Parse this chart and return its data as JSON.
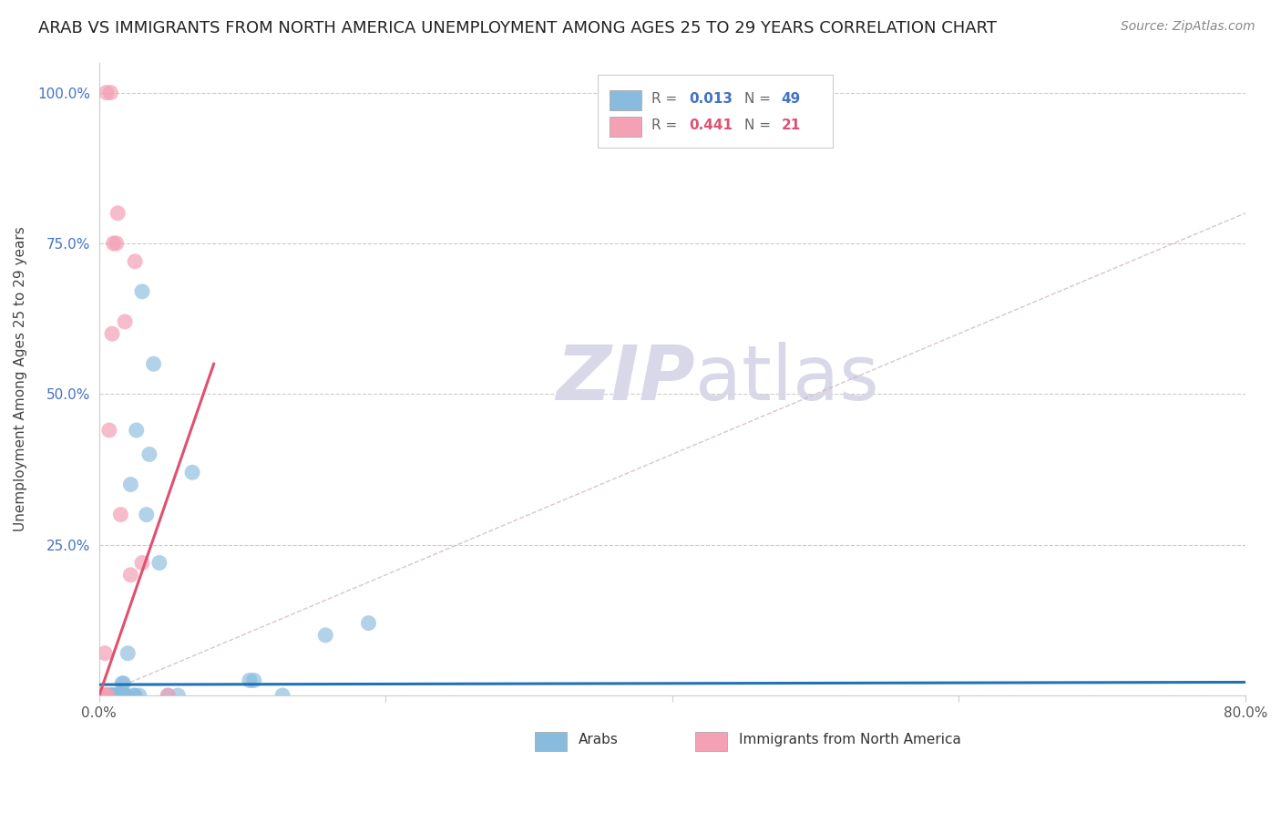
{
  "title": "ARAB VS IMMIGRANTS FROM NORTH AMERICA UNEMPLOYMENT AMONG AGES 25 TO 29 YEARS CORRELATION CHART",
  "source": "Source: ZipAtlas.com",
  "ylabel": "Unemployment Among Ages 25 to 29 years",
  "xlim": [
    0.0,
    0.8
  ],
  "ylim": [
    0.0,
    1.05
  ],
  "xticks": [
    0.0,
    0.2,
    0.4,
    0.6,
    0.8
  ],
  "xticklabels": [
    "0.0%",
    "",
    "",
    "",
    "80.0%"
  ],
  "yticks": [
    0.0,
    0.25,
    0.5,
    0.75,
    1.0
  ],
  "yticklabels": [
    "",
    "25.0%",
    "50.0%",
    "75.0%",
    "100.0%"
  ],
  "arab_color": "#88bbdd",
  "immigrant_color": "#f4a0b5",
  "arab_line_color": "#2171b5",
  "immigrant_line_color": "#e05070",
  "diag_line_color": "#ccaabb",
  "watermark_color": "#d8d8e8",
  "arab_line_x": [
    0.0,
    0.8
  ],
  "arab_line_y": [
    0.018,
    0.022
  ],
  "immigrant_line_x": [
    0.0,
    0.08
  ],
  "immigrant_line_y": [
    0.0,
    0.55
  ],
  "arab_x": [
    0.0,
    0.002,
    0.003,
    0.003,
    0.004,
    0.005,
    0.005,
    0.006,
    0.007,
    0.008,
    0.008,
    0.008,
    0.009,
    0.009,
    0.01,
    0.01,
    0.011,
    0.011,
    0.012,
    0.012,
    0.013,
    0.014,
    0.014,
    0.015,
    0.015,
    0.016,
    0.016,
    0.017,
    0.018,
    0.019,
    0.02,
    0.022,
    0.024,
    0.025,
    0.026,
    0.028,
    0.03,
    0.033,
    0.035,
    0.038,
    0.042,
    0.048,
    0.055,
    0.065,
    0.105,
    0.108,
    0.128,
    0.158,
    0.188
  ],
  "arab_y": [
    0.0,
    0.0,
    0.0,
    0.0,
    0.0,
    0.0,
    0.0,
    0.0,
    0.0,
    0.0,
    0.0,
    0.0,
    0.0,
    0.0,
    0.0,
    0.0,
    0.0,
    0.0,
    0.0,
    0.0,
    0.0,
    0.0,
    0.0,
    0.0,
    0.0,
    0.0,
    0.02,
    0.02,
    0.0,
    0.0,
    0.07,
    0.35,
    0.0,
    0.0,
    0.44,
    0.0,
    0.67,
    0.3,
    0.4,
    0.55,
    0.22,
    0.0,
    0.0,
    0.37,
    0.025,
    0.025,
    0.0,
    0.1,
    0.12
  ],
  "immigrant_x": [
    0.001,
    0.001,
    0.002,
    0.003,
    0.003,
    0.004,
    0.004,
    0.005,
    0.006,
    0.007,
    0.008,
    0.009,
    0.01,
    0.012,
    0.013,
    0.015,
    0.018,
    0.022,
    0.025,
    0.03,
    0.048
  ],
  "immigrant_y": [
    0.0,
    0.0,
    0.0,
    0.0,
    0.0,
    0.0,
    0.07,
    1.0,
    0.0,
    0.44,
    1.0,
    0.6,
    0.75,
    0.75,
    0.8,
    0.3,
    0.62,
    0.2,
    0.72,
    0.22,
    0.0
  ]
}
